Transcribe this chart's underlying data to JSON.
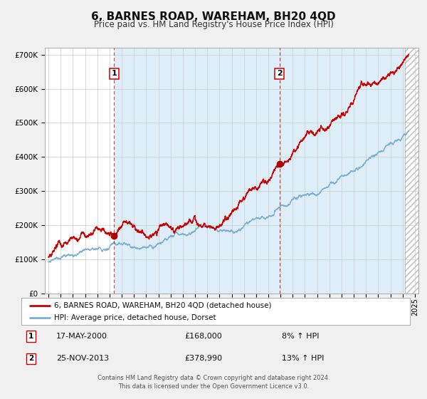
{
  "title": "6, BARNES ROAD, WAREHAM, BH20 4QD",
  "subtitle": "Price paid vs. HM Land Registry's House Price Index (HPI)",
  "title_fontsize": 11,
  "subtitle_fontsize": 8.5,
  "ylim": [
    0,
    720000
  ],
  "xlim_start": 1994.7,
  "xlim_end": 2025.3,
  "vline1_x": 2000.38,
  "vline2_x": 2013.92,
  "marker1_x": 2000.38,
  "marker1_y": 168000,
  "marker2_x": 2013.92,
  "marker2_y": 378990,
  "label1_num": "1",
  "label2_num": "2",
  "label1_date": "17-MAY-2000",
  "label1_price": "£168,000",
  "label1_hpi": "8% ↑ HPI",
  "label2_date": "25-NOV-2013",
  "label2_price": "£378,990",
  "label2_hpi": "13% ↑ HPI",
  "legend_line1": "6, BARNES ROAD, WAREHAM, BH20 4QD (detached house)",
  "legend_line2": "HPI: Average price, detached house, Dorset",
  "footer1": "Contains HM Land Registry data © Crown copyright and database right 2024.",
  "footer2": "This data is licensed under the Open Government Licence v3.0.",
  "red_color": "#cc0000",
  "blue_color": "#7aafd4",
  "shade_color": "#ddeef8",
  "hatch_start": 2024.17,
  "grid_color": "#cccccc",
  "yticks": [
    0,
    100000,
    200000,
    300000,
    400000,
    500000,
    600000,
    700000
  ],
  "fig_bg": "#f0f0f0",
  "plot_bg": "#ffffff"
}
